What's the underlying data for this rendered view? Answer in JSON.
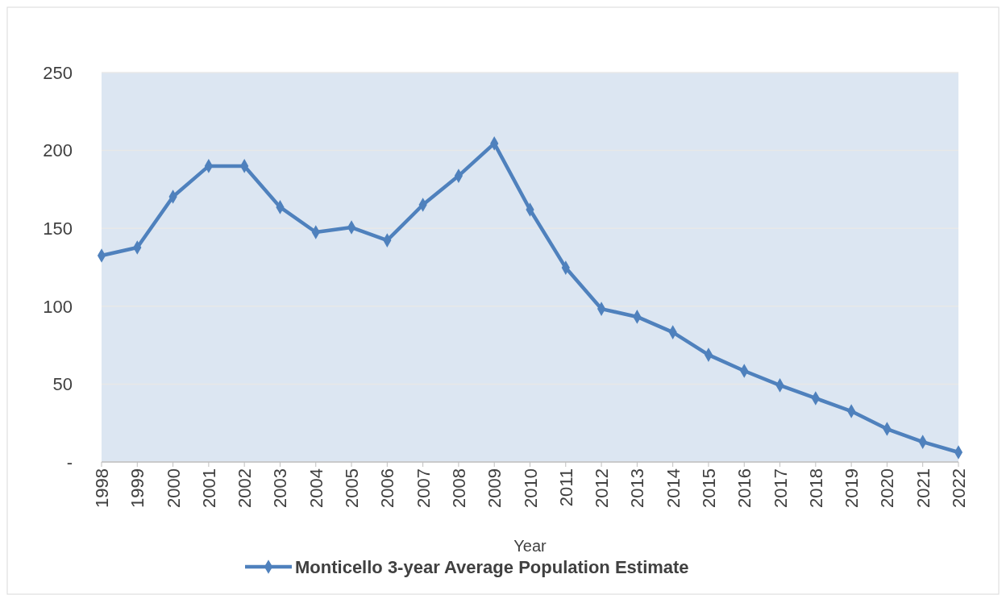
{
  "chart_data": {
    "type": "line",
    "xlabel": "Year",
    "categories": [
      "1998",
      "1999",
      "2000",
      "2001",
      "2002",
      "2003",
      "2004",
      "2005",
      "2006",
      "2007",
      "2008",
      "2009",
      "2010",
      "2011",
      "2012",
      "2013",
      "2014",
      "2015",
      "2016",
      "2017",
      "2018",
      "2019",
      "2020",
      "2021",
      "2022"
    ],
    "series": [
      {
        "name": "Monticello 3-year Average Population Estimate",
        "color": "#4f81bd",
        "values": [
          132.5,
          137.7,
          170.3,
          190,
          190,
          163.6,
          147.5,
          150.6,
          142.3,
          165.1,
          183.7,
          204.5,
          162,
          124.7,
          98.3,
          93.2,
          83.3,
          68.8,
          58.5,
          49.2,
          40.9,
          32.6,
          21.2,
          12.9,
          6.2
        ]
      }
    ],
    "ylim": [
      0,
      250
    ],
    "yticks": [
      {
        "value": 0,
        "label": "-"
      },
      50,
      100,
      150,
      200,
      250
    ],
    "grid": "y",
    "legend": "bottom",
    "marker": "diamond",
    "line_style": "solid"
  }
}
